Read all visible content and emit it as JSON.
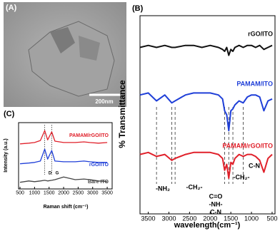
{
  "panel_a": {
    "label": "(A)",
    "scale_bar": "200nm"
  },
  "chart_data": [
    {
      "type": "line",
      "panel_label": "(B)",
      "xlabel": "wavelength(cm⁻¹)",
      "ylabel": "% Transmittance",
      "x": [
        3700,
        3500,
        3300,
        3100,
        2930,
        2850,
        2600,
        2400,
        2200,
        2000,
        1800,
        1700,
        1650,
        1600,
        1550,
        1500,
        1450,
        1400,
        1300,
        1200,
        1100,
        1000,
        900,
        800,
        700,
        600,
        500
      ],
      "xlim": [
        3700,
        430
      ],
      "xticks": [
        3500,
        3000,
        2500,
        2000,
        1500,
        1000,
        500
      ],
      "ylim": [
        0,
        100
      ],
      "series": [
        {
          "name": "rGO/ITO",
          "color": "#111111",
          "values": [
            84,
            85,
            84,
            85,
            84,
            84,
            85,
            85,
            84,
            85,
            84,
            83,
            82,
            84,
            80,
            83,
            82,
            84,
            85,
            84,
            85,
            85,
            84,
            85,
            83,
            84,
            85
          ]
        },
        {
          "name": "PAMAM/ITO",
          "color": "#1f3fd8",
          "values": [
            60,
            61,
            57,
            60,
            56,
            57,
            60,
            61,
            61,
            61,
            60,
            58,
            52,
            50,
            42,
            52,
            53,
            55,
            57,
            56,
            59,
            60,
            60,
            59,
            52,
            57,
            58
          ]
        },
        {
          "name": "PAMAM/rGO/ITO",
          "color": "#e0202a",
          "values": [
            30,
            31,
            29,
            30,
            27,
            28,
            30,
            31,
            31,
            31,
            30,
            28,
            22,
            25,
            18,
            26,
            25,
            28,
            30,
            29,
            30,
            30,
            29,
            27,
            21,
            28,
            30
          ]
        }
      ],
      "reference_lines": [
        3300,
        2930,
        2850,
        1650,
        1550,
        1450,
        1200
      ],
      "annotations": [
        "-NH₂",
        "-CH₂-",
        "C=O",
        "-NH-",
        "C-N",
        "-CH₂-",
        "C-N"
      ]
    },
    {
      "type": "line",
      "panel_label": "(C)",
      "xlabel": "Raman shift (cm⁻¹)",
      "ylabel": "Intensity (a.u.)",
      "x": [
        500,
        800,
        1000,
        1200,
        1350,
        1450,
        1590,
        1700,
        2000,
        2400,
        2700,
        2900,
        3200,
        3500
      ],
      "xlim": [
        450,
        3670
      ],
      "xticks": [
        500,
        1000,
        1500,
        2000,
        2500,
        3000,
        3500
      ],
      "ylim": [
        0,
        100
      ],
      "series": [
        {
          "name": "PAMAM/rGO/ITO",
          "color": "#e0202a",
          "values": [
            68,
            69,
            70,
            73,
            88,
            74,
            86,
            72,
            70,
            70,
            71,
            70,
            69,
            70
          ]
        },
        {
          "name": "rGO/ITO",
          "color": "#1f3fd8",
          "values": [
            38,
            39,
            40,
            42,
            60,
            45,
            58,
            42,
            41,
            41,
            42,
            41,
            40,
            40
          ]
        },
        {
          "name": "Bare ITO",
          "color": "#444444",
          "values": [
            10,
            12,
            11,
            12,
            13,
            12,
            13,
            14,
            18,
            14,
            15,
            14,
            12,
            11
          ]
        }
      ],
      "reference_lines": [
        1350,
        1590
      ],
      "annotations": [
        "D",
        "G"
      ]
    }
  ]
}
